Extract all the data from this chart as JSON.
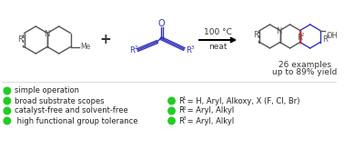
{
  "bg_color": "#ffffff",
  "reaction_condition_1": "100 °C",
  "reaction_condition_2": "neat",
  "product_info_1": "26 examples",
  "product_info_2": "up to 89% yield",
  "bullet_color": "#22cc22",
  "bullet_left": [
    "simple operation",
    "broad substrate scopes",
    "catalyst-free and solvent-free",
    " high functional group tolerance"
  ],
  "bullet_right_labels": [
    "1",
    "2",
    "3"
  ],
  "bullet_right_texts": [
    " = H, Aryl, Alkoxy, X (F, Cl, Br)",
    " = Aryl, Alkyl",
    " = Aryl, Alkyl"
  ],
  "quinoline_color": "#555555",
  "diynone_blue": "#3333bb",
  "product_black": "#555555",
  "product_red": "#dd2222",
  "product_blue": "#3333bb"
}
